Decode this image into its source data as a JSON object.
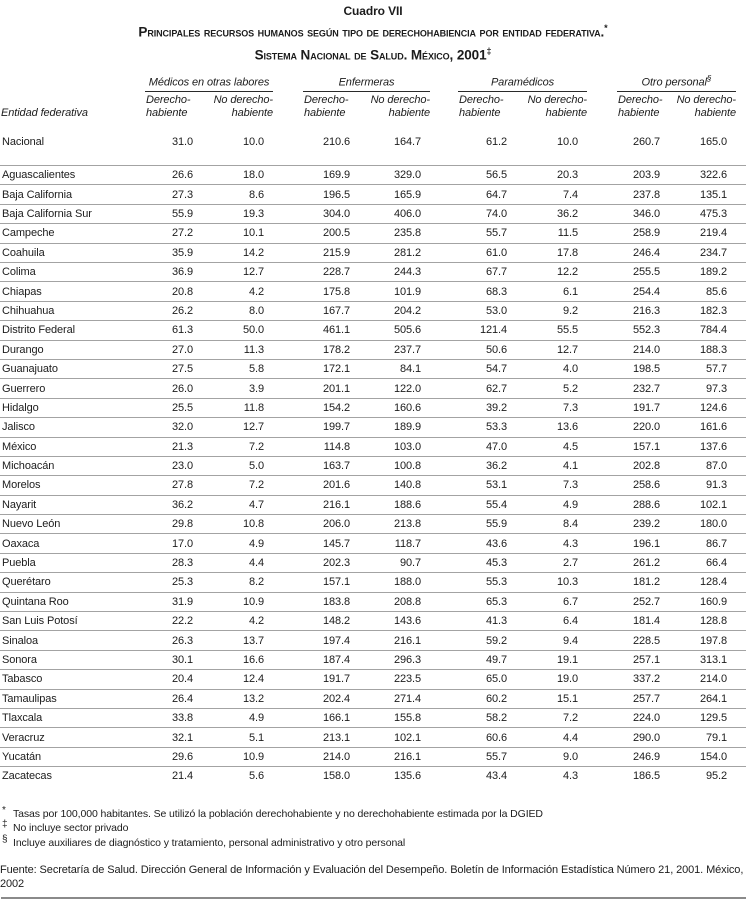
{
  "title": {
    "kicker": "Cuadro VII",
    "line1": "Principales recursos humanos según tipo de derechohabiencia por entidad federativa.",
    "line1_marker": "*",
    "line2": "Sistema Nacional de Salud. México, 2001",
    "line2_marker": "‡"
  },
  "table": {
    "entity_header": "Entidad federativa",
    "groups": [
      {
        "label": "Médicos en otras labores",
        "marker": ""
      },
      {
        "label": "Enfermeras",
        "marker": ""
      },
      {
        "label": "Paramédicos",
        "marker": ""
      },
      {
        "label": "Otro personal",
        "marker": "§"
      }
    ],
    "subheaders": {
      "dh_line1": "Derecho-",
      "dh_line2": "habiente",
      "ndh_line1": "No derecho-",
      "ndh_line2": "habiente"
    },
    "rows": [
      {
        "name": "Nacional",
        "values": [
          "31.0",
          "10.0",
          "210.6",
          "164.7",
          "61.2",
          "10.0",
          "260.7",
          "165.0"
        ]
      },
      {
        "name": "Aguascalientes",
        "values": [
          "26.6",
          "18.0",
          "169.9",
          "329.0",
          "56.5",
          "20.3",
          "203.9",
          "322.6"
        ]
      },
      {
        "name": "Baja California",
        "values": [
          "27.3",
          "8.6",
          "196.5",
          "165.9",
          "64.7",
          "7.4",
          "237.8",
          "135.1"
        ]
      },
      {
        "name": "Baja California Sur",
        "values": [
          "55.9",
          "19.3",
          "304.0",
          "406.0",
          "74.0",
          "36.2",
          "346.0",
          "475.3"
        ]
      },
      {
        "name": "Campeche",
        "values": [
          "27.2",
          "10.1",
          "200.5",
          "235.8",
          "55.7",
          "11.5",
          "258.9",
          "219.4"
        ]
      },
      {
        "name": "Coahuila",
        "values": [
          "35.9",
          "14.2",
          "215.9",
          "281.2",
          "61.0",
          "17.8",
          "246.4",
          "234.7"
        ]
      },
      {
        "name": "Colima",
        "values": [
          "36.9",
          "12.7",
          "228.7",
          "244.3",
          "67.7",
          "12.2",
          "255.5",
          "189.2"
        ]
      },
      {
        "name": "Chiapas",
        "values": [
          "20.8",
          "4.2",
          "175.8",
          "101.9",
          "68.3",
          "6.1",
          "254.4",
          "85.6"
        ]
      },
      {
        "name": "Chihuahua",
        "values": [
          "26.2",
          "8.0",
          "167.7",
          "204.2",
          "53.0",
          "9.2",
          "216.3",
          "182.3"
        ]
      },
      {
        "name": "Distrito Federal",
        "values": [
          "61.3",
          "50.0",
          "461.1",
          "505.6",
          "121.4",
          "55.5",
          "552.3",
          "784.4"
        ]
      },
      {
        "name": "Durango",
        "values": [
          "27.0",
          "11.3",
          "178.2",
          "237.7",
          "50.6",
          "12.7",
          "214.0",
          "188.3"
        ]
      },
      {
        "name": "Guanajuato",
        "values": [
          "27.5",
          "5.8",
          "172.1",
          "84.1",
          "54.7",
          "4.0",
          "198.5",
          "57.7"
        ]
      },
      {
        "name": "Guerrero",
        "values": [
          "26.0",
          "3.9",
          "201.1",
          "122.0",
          "62.7",
          "5.2",
          "232.7",
          "97.3"
        ]
      },
      {
        "name": "Hidalgo",
        "values": [
          "25.5",
          "11.8",
          "154.2",
          "160.6",
          "39.2",
          "7.3",
          "191.7",
          "124.6"
        ]
      },
      {
        "name": "Jalisco",
        "values": [
          "32.0",
          "12.7",
          "199.7",
          "189.9",
          "53.3",
          "13.6",
          "220.0",
          "161.6"
        ]
      },
      {
        "name": "México",
        "values": [
          "21.3",
          "7.2",
          "114.8",
          "103.0",
          "47.0",
          "4.5",
          "157.1",
          "137.6"
        ]
      },
      {
        "name": "Michoacán",
        "values": [
          "23.0",
          "5.0",
          "163.7",
          "100.8",
          "36.2",
          "4.1",
          "202.8",
          "87.0"
        ]
      },
      {
        "name": "Morelos",
        "values": [
          "27.8",
          "7.2",
          "201.6",
          "140.8",
          "53.1",
          "7.3",
          "258.6",
          "91.3"
        ]
      },
      {
        "name": "Nayarit",
        "values": [
          "36.2",
          "4.7",
          "216.1",
          "188.6",
          "55.4",
          "4.9",
          "288.6",
          "102.1"
        ]
      },
      {
        "name": "Nuevo León",
        "values": [
          "29.8",
          "10.8",
          "206.0",
          "213.8",
          "55.9",
          "8.4",
          "239.2",
          "180.0"
        ]
      },
      {
        "name": "Oaxaca",
        "values": [
          "17.0",
          "4.9",
          "145.7",
          "118.7",
          "43.6",
          "4.3",
          "196.1",
          "86.7"
        ]
      },
      {
        "name": "Puebla",
        "values": [
          "28.3",
          "4.4",
          "202.3",
          "90.7",
          "45.3",
          "2.7",
          "261.2",
          "66.4"
        ]
      },
      {
        "name": "Querétaro",
        "values": [
          "25.3",
          "8.2",
          "157.1",
          "188.0",
          "55.3",
          "10.3",
          "181.2",
          "128.4"
        ]
      },
      {
        "name": "Quintana Roo",
        "values": [
          "31.9",
          "10.9",
          "183.8",
          "208.8",
          "65.3",
          "6.7",
          "252.7",
          "160.9"
        ]
      },
      {
        "name": "San Luis Potosí",
        "values": [
          "22.2",
          "4.2",
          "148.2",
          "143.6",
          "41.3",
          "6.4",
          "181.4",
          "128.8"
        ]
      },
      {
        "name": "Sinaloa",
        "values": [
          "26.3",
          "13.7",
          "197.4",
          "216.1",
          "59.2",
          "9.4",
          "228.5",
          "197.8"
        ]
      },
      {
        "name": "Sonora",
        "values": [
          "30.1",
          "16.6",
          "187.4",
          "296.3",
          "49.7",
          "19.1",
          "257.1",
          "313.1"
        ]
      },
      {
        "name": "Tabasco",
        "values": [
          "20.4",
          "12.4",
          "191.7",
          "223.5",
          "65.0",
          "19.0",
          "337.2",
          "214.0"
        ]
      },
      {
        "name": "Tamaulipas",
        "values": [
          "26.4",
          "13.2",
          "202.4",
          "271.4",
          "60.2",
          "15.1",
          "257.7",
          "264.1"
        ]
      },
      {
        "name": "Tlaxcala",
        "values": [
          "33.8",
          "4.9",
          "166.1",
          "155.8",
          "58.2",
          "7.2",
          "224.0",
          "129.5"
        ]
      },
      {
        "name": "Veracruz",
        "values": [
          "32.1",
          "5.1",
          "213.1",
          "102.1",
          "60.6",
          "4.4",
          "290.0",
          "79.1"
        ]
      },
      {
        "name": "Yucatán",
        "values": [
          "29.6",
          "10.9",
          "214.0",
          "216.1",
          "55.7",
          "9.0",
          "246.9",
          "154.0"
        ]
      },
      {
        "name": "Zacatecas",
        "values": [
          "21.4",
          "5.6",
          "158.0",
          "135.6",
          "43.4",
          "4.3",
          "186.5",
          "95.2"
        ]
      }
    ]
  },
  "footnotes": [
    {
      "marker": "*",
      "text": "Tasas por 100,000 habitantes.  Se utilizó la población derechohabiente y no derechohabiente estimada por la DGIED"
    },
    {
      "marker": "‡",
      "text": "No incluye sector privado"
    },
    {
      "marker": "§",
      "text": "Incluye auxiliares de diagnóstico y tratamiento, personal administrativo y otro personal"
    }
  ],
  "source": "Fuente: Secretaría de Salud. Dirección General de Información y Evaluación del Desempeño. Boletín de Información Estadística Número 21, 2001. México, 2002"
}
